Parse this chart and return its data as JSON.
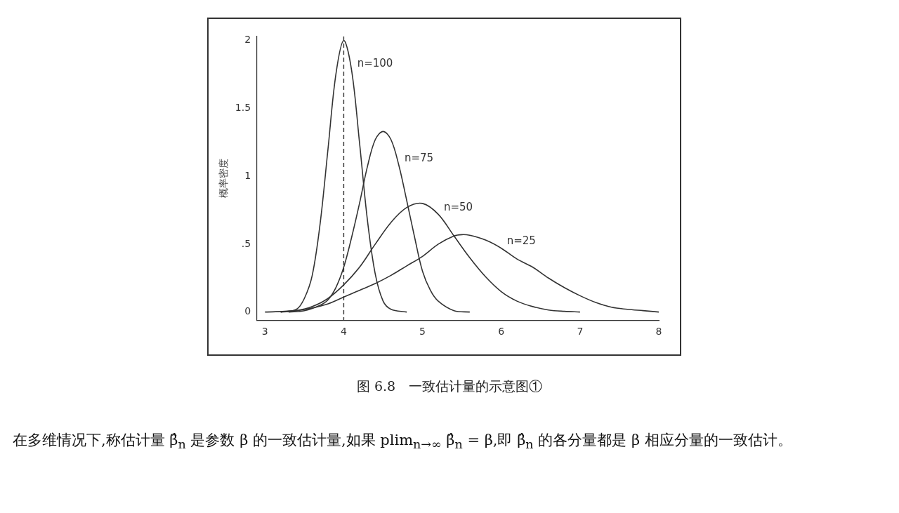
{
  "chart_data": {
    "type": "line",
    "ylabel": "概率密度",
    "annotations": [
      "图 6.8　一致估计量的示意图①",
      "在多维情况下,称估计量 β̂$_{n}$ 是参数 β 的一致估计量,如果 plim$_{n→∞}$ β̂$_{n}$ = β,即 β̂$_{n}$ 的各分量都是 β 相应分量的一致估计。"
    ],
    "xlim": [
      2.9,
      8
    ],
    "xticks": [
      3,
      4,
      5,
      6,
      7,
      8
    ],
    "ylim": [
      -0.06,
      2.03
    ],
    "yticks": [
      0,
      {
        "value": 0.5,
        "label": ".5"
      },
      1,
      1.5,
      2
    ],
    "grid": false,
    "legend": false,
    "marker": "none",
    "line_style": "solid",
    "ref_lines": [
      {
        "axis": "x",
        "value": 4,
        "line_style": "dashed",
        "color": "#333333"
      }
    ],
    "series": [
      {
        "name": "n=100",
        "color": "#333333",
        "x": [
          3.2,
          3.4,
          3.5,
          3.6,
          3.7,
          3.8,
          3.9,
          4,
          4.1,
          4.2,
          4.3,
          4.4,
          4.5,
          4.6,
          4.8
        ],
        "values": [
          0,
          0.02,
          0.1,
          0.27,
          0.65,
          1.2,
          1.75,
          2,
          1.78,
          1.25,
          0.68,
          0.28,
          0.08,
          0.02,
          0
        ]
      },
      {
        "name": "n=75",
        "color": "#333333",
        "x": [
          3.3,
          3.5,
          3.7,
          3.8,
          3.9,
          4,
          4.1,
          4.2,
          4.3,
          4.4,
          4.5,
          4.6,
          4.7,
          4.8,
          4.9,
          5,
          5.1,
          5.2,
          5.4,
          5.6
        ],
        "values": [
          0,
          0.01,
          0.05,
          0.09,
          0.18,
          0.33,
          0.55,
          0.8,
          1.07,
          1.27,
          1.33,
          1.27,
          1.08,
          0.82,
          0.55,
          0.3,
          0.16,
          0.08,
          0.01,
          0
        ]
      },
      {
        "name": "n=50",
        "color": "#333333",
        "x": [
          3.2,
          3.4,
          3.6,
          3.8,
          4,
          4.2,
          4.4,
          4.6,
          4.8,
          5,
          5.2,
          5.4,
          5.6,
          5.8,
          6,
          6.2,
          6.4,
          6.6,
          6.8,
          7
        ],
        "values": [
          0,
          0.01,
          0.04,
          0.1,
          0.2,
          0.33,
          0.5,
          0.66,
          0.77,
          0.8,
          0.72,
          0.56,
          0.4,
          0.26,
          0.15,
          0.08,
          0.04,
          0.015,
          0.005,
          0
        ]
      },
      {
        "name": "n=25",
        "color": "#333333",
        "x": [
          3,
          3.4,
          3.6,
          3.8,
          4,
          4.2,
          4.4,
          4.6,
          4.8,
          5,
          5.2,
          5.4,
          5.5,
          5.6,
          5.8,
          6,
          6.2,
          6.4,
          6.6,
          6.8,
          7,
          7.2,
          7.4,
          7.6,
          7.8,
          8
        ],
        "values": [
          0,
          0.01,
          0.03,
          0.06,
          0.11,
          0.16,
          0.21,
          0.27,
          0.34,
          0.41,
          0.5,
          0.56,
          0.57,
          0.565,
          0.53,
          0.47,
          0.39,
          0.33,
          0.25,
          0.18,
          0.12,
          0.07,
          0.035,
          0.02,
          0.01,
          0
        ]
      }
    ]
  }
}
